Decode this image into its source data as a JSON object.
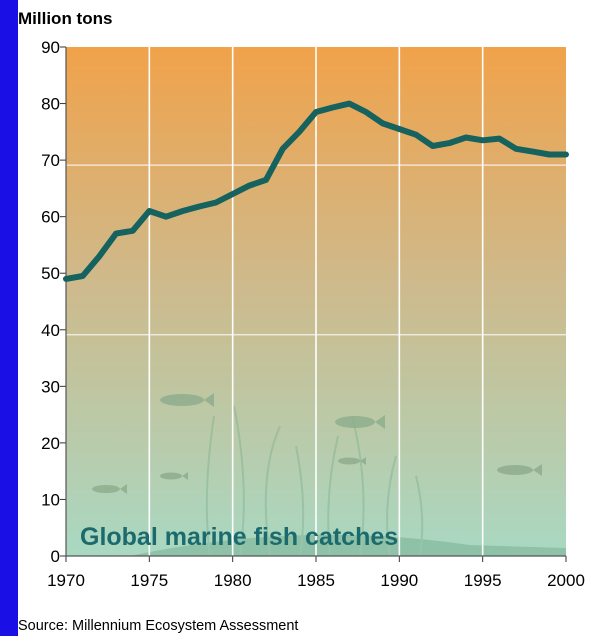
{
  "chart_data": {
    "type": "line",
    "title": "Global marine fish catches",
    "ylabel": "Million tons",
    "xlabel": "",
    "source": "Source: Millennium Ecosystem Assessment",
    "xlim": [
      1970,
      2000
    ],
    "ylim": [
      0,
      90
    ],
    "x_ticks": [
      "1970",
      "1975",
      "1980",
      "1985",
      "1990",
      "1995",
      "2000"
    ],
    "y_ticks": [
      "0",
      "10",
      "20",
      "30",
      "40",
      "50",
      "60",
      "70",
      "80",
      "90"
    ],
    "grid": true,
    "series": [
      {
        "name": "",
        "x": [
          1970,
          1971,
          1972,
          1973,
          1974,
          1975,
          1976,
          1977,
          1978,
          1979,
          1980,
          1981,
          1982,
          1983,
          1984,
          1985,
          1986,
          1987,
          1988,
          1989,
          1990,
          1991,
          1992,
          1993,
          1994,
          1995,
          1996,
          1997,
          1998,
          1999,
          2000
        ],
        "y": [
          49,
          49.5,
          53,
          57,
          57.5,
          61,
          60,
          61,
          61.8,
          62.5,
          64,
          65.5,
          66.5,
          72,
          75,
          78.5,
          79.3,
          80,
          78.5,
          76.5,
          75.5,
          74.5,
          72.5,
          73,
          74,
          73.5,
          73.8,
          72,
          71.5,
          71,
          71
        ]
      }
    ]
  },
  "colors": {
    "frame": "#1a10e6",
    "line": "#15625f",
    "bg_top": "#f1a24a",
    "bg_bottom": "#a9d8c2",
    "grid": "#ffffff",
    "title_text": "#1b6b6e"
  }
}
